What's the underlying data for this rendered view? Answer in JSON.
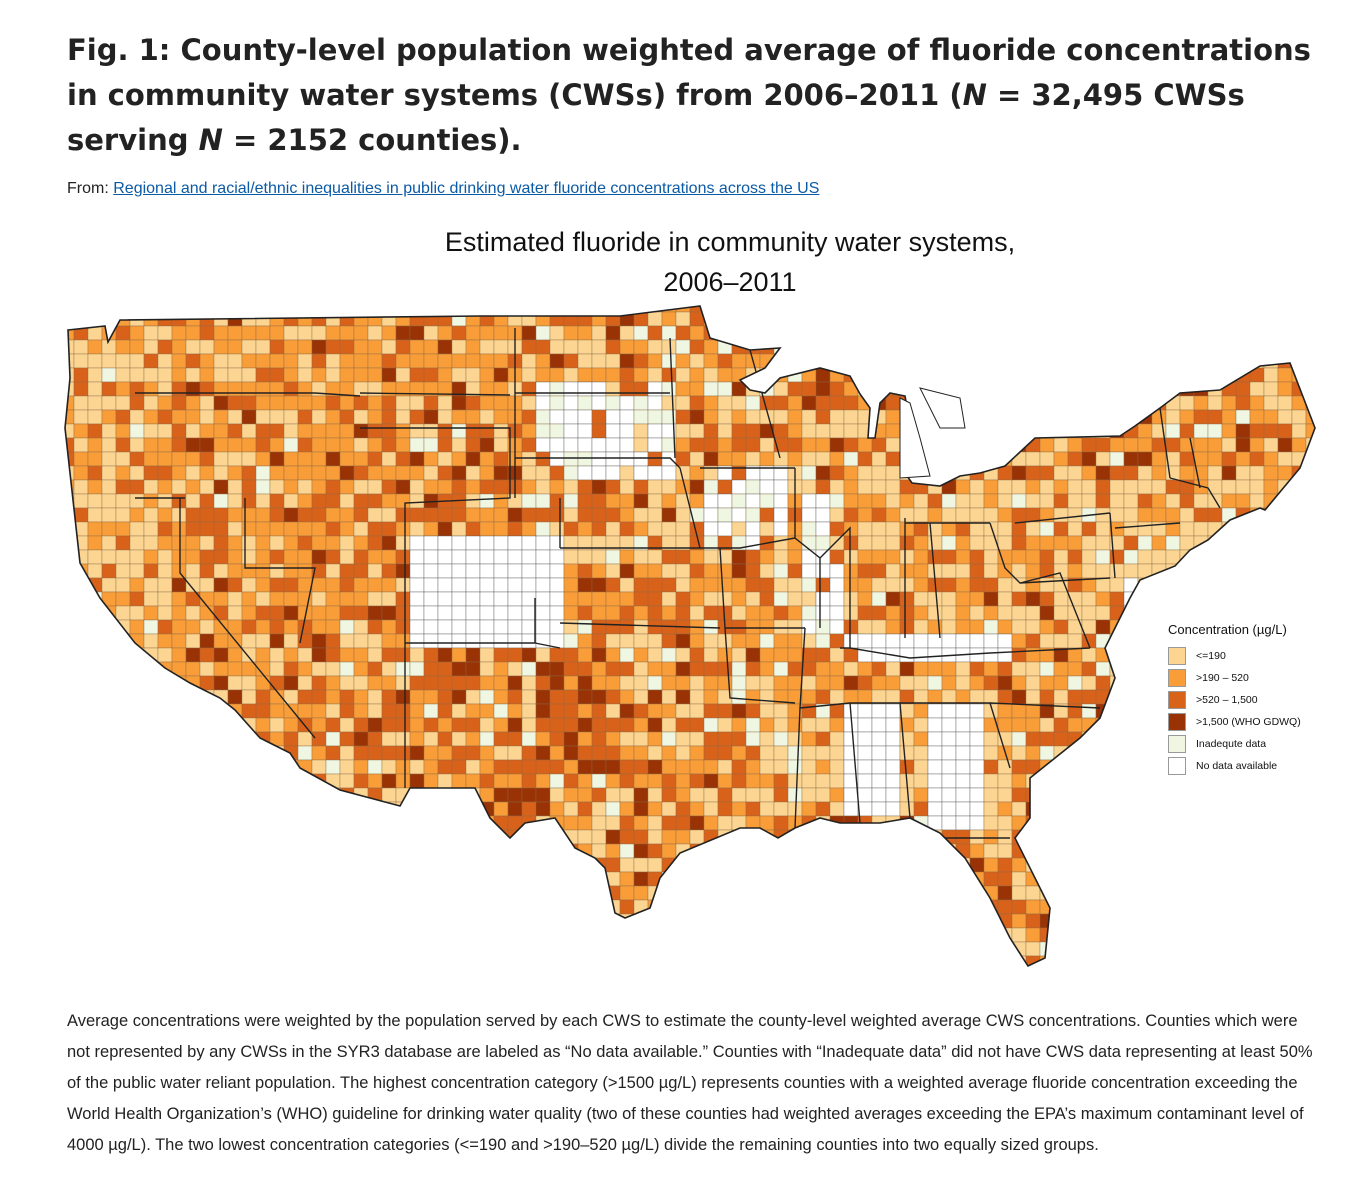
{
  "figure": {
    "title_parts": {
      "p1": "Fig. 1: County-level population weighted average of fluoride concentrations in community water systems (CWSs) from 2006–2011 (",
      "n1": "N",
      "p2": " = 32,495 CWSs serving ",
      "n2": "N",
      "p3": " = 2152 counties)."
    },
    "from_label": "From:",
    "source_link": "Regional and racial/ethnic inequalities in public drinking water fluoride concentrations across the US"
  },
  "map": {
    "title_line1": "Estimated fluoride in community water systems,",
    "title_line2": "2006–2011",
    "legend_title": "Concentration (µg/L)",
    "legend": [
      {
        "label": "<=190",
        "color": "#fcd593"
      },
      {
        "label": ">190 – 520",
        "color": "#f99d38"
      },
      {
        "label": ">520 – 1,500",
        "color": "#d9621b"
      },
      {
        "label": ">1,500 (WHO GDWQ)",
        "color": "#993306"
      },
      {
        "label": "Inadequte data",
        "color": "#eff7e3"
      },
      {
        "label": "No data available",
        "color": "#ffffff"
      }
    ]
  },
  "caption": "Average concentrations were weighted by the population served by each CWS to estimate the county-level weighted average CWS concentrations. Counties which were not represented by any CWSs in the SYR3 database are labeled as “No data available.” Counties with “Inadequate data” did not have CWS data representing at least 50% of the public water reliant population. The highest concentration category (>1500 µg/L) represents counties with a weighted average fluoride concentration exceeding the World Health Organization’s (WHO) guideline for drinking water quality (two of these counties had weighted averages exceeding the EPA’s maximum contaminant level of 4000 µg/L). The two lowest concentration categories (<=190 and >190–520 µg/L) divide the remaining counties into two equally sized groups."
}
